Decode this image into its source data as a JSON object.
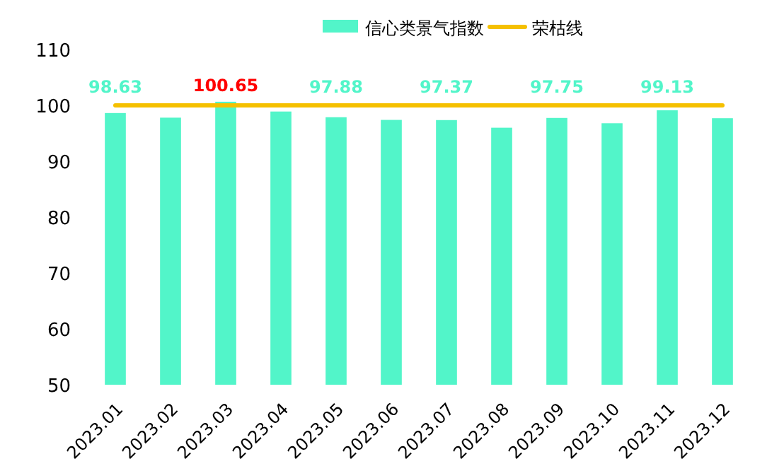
{
  "chart_data": {
    "type": "bar",
    "categories": [
      "2023.01",
      "2023.02",
      "2023.03",
      "2023.04",
      "2023.05",
      "2023.06",
      "2023.07",
      "2023.08",
      "2023.09",
      "2023.10",
      "2023.11",
      "2023.12"
    ],
    "series": [
      {
        "name": "信心类景气指数",
        "color": "#52f5c9",
        "values": [
          98.63,
          97.8,
          100.65,
          98.9,
          97.88,
          97.4,
          97.37,
          96.0,
          97.75,
          96.8,
          99.13,
          97.7
        ],
        "value_labels": [
          "98.63",
          null,
          "100.65",
          null,
          "97.88",
          null,
          "97.37",
          null,
          "97.75",
          null,
          "99.13",
          null
        ]
      },
      {
        "name": "荣枯线",
        "type": "line",
        "color": "#f5c000",
        "values": [
          100,
          100,
          100,
          100,
          100,
          100,
          100,
          100,
          100,
          100,
          100,
          100
        ]
      }
    ],
    "ylim": [
      50,
      110
    ],
    "yticks": [
      50,
      60,
      70,
      80,
      90,
      100,
      110
    ],
    "grid": false,
    "legend": "top",
    "marker": "none"
  }
}
